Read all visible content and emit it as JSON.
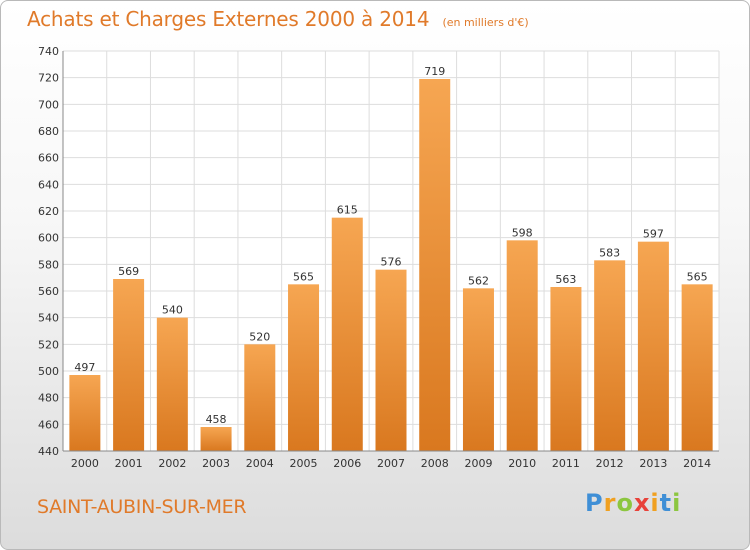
{
  "header": {
    "title": "Achats et Charges Externes 2000 à 2014",
    "subtitle": "(en milliers d'€)"
  },
  "footer": {
    "commune": "SAINT-AUBIN-SUR-MER",
    "brand": "Proxiti",
    "brand_letters": [
      {
        "ch": "P",
        "color": "#3f8fd6"
      },
      {
        "ch": "r",
        "color": "#f0a020"
      },
      {
        "ch": "o",
        "color": "#8cc63f"
      },
      {
        "ch": "x",
        "color": "#e8423a"
      },
      {
        "ch": "i",
        "color": "#f0a020"
      },
      {
        "ch": "t",
        "color": "#3f8fd6"
      },
      {
        "ch": "i",
        "color": "#8cc63f"
      }
    ]
  },
  "chart_data": {
    "type": "bar",
    "title": "Achats et Charges Externes 2000 à 2014",
    "subtitle": "(en milliers d'€)",
    "categories": [
      "2000",
      "2001",
      "2002",
      "2003",
      "2004",
      "2005",
      "2006",
      "2007",
      "2008",
      "2009",
      "2010",
      "2011",
      "2012",
      "2013",
      "2014"
    ],
    "values": [
      497,
      569,
      540,
      458,
      520,
      565,
      615,
      576,
      719,
      562,
      598,
      563,
      583,
      597,
      565
    ],
    "ylim": [
      440,
      740
    ],
    "yticks": [
      440,
      460,
      480,
      500,
      520,
      540,
      560,
      580,
      600,
      620,
      640,
      660,
      680,
      700,
      720,
      740
    ],
    "grid": true,
    "colors": {
      "bar_light": "#f6a652",
      "bar_dark": "#d9781f",
      "grid": "#dddddd",
      "axis": "#888888",
      "text": "#333333"
    }
  }
}
